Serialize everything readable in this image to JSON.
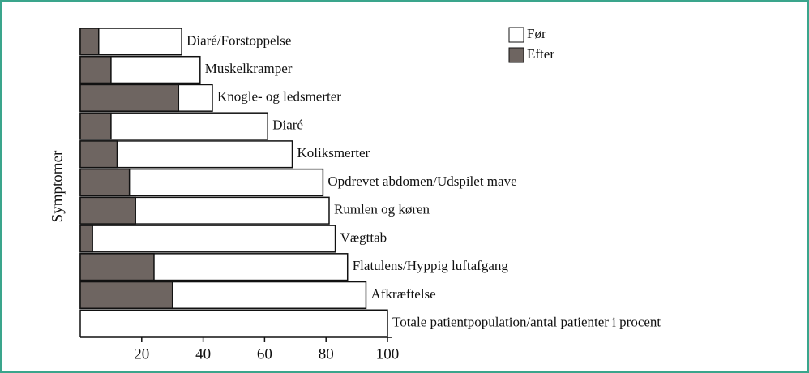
{
  "chart_data": {
    "type": "bar",
    "orientation": "horizontal",
    "y_label": "Symptomer",
    "categories": [
      "Diaré/Forstoppelse",
      "Muskelkramper",
      "Knogle- og ledsmerter",
      "Diaré",
      "Koliksmerter",
      "Opdrevet abdomen/Udspilet mave",
      "Rumlen og køren",
      "Vægttab",
      "Flatulens/Hyppig luftafgang",
      "Afkræftelse",
      "Totale patientpopulation/antal patienter i procent"
    ],
    "series": [
      {
        "name": "Før",
        "color": "#ffffff",
        "values": [
          33,
          39,
          43,
          61,
          69,
          79,
          81,
          83,
          87,
          93,
          100
        ]
      },
      {
        "name": "Efter",
        "color": "#6e6561",
        "values": [
          6,
          10,
          32,
          10,
          12,
          16,
          18,
          4,
          24,
          30,
          null
        ]
      }
    ],
    "xlim": [
      0,
      100
    ],
    "xticks": [
      20,
      40,
      60,
      80,
      100
    ],
    "legend": "top-right"
  }
}
